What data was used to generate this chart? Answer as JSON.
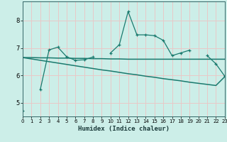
{
  "title": "",
  "xlabel": "Humidex (Indice chaleur)",
  "bg_color": "#cceee8",
  "grid_color": "#e8c8c8",
  "line_color": "#1a7a6e",
  "x_values": [
    0,
    1,
    2,
    3,
    4,
    5,
    6,
    7,
    8,
    9,
    10,
    11,
    12,
    13,
    14,
    15,
    16,
    17,
    18,
    19,
    20,
    21,
    22,
    23
  ],
  "y_jagged": [
    4.72,
    null,
    5.48,
    6.93,
    7.03,
    6.68,
    6.55,
    6.57,
    6.67,
    null,
    6.82,
    7.12,
    8.33,
    7.48,
    7.48,
    7.45,
    7.28,
    6.72,
    6.82,
    6.92,
    null,
    6.72,
    6.42,
    5.97
  ],
  "y_trend1": [
    6.65,
    6.65,
    6.64,
    6.64,
    6.63,
    6.63,
    6.62,
    6.62,
    6.61,
    6.61,
    6.6,
    6.6,
    6.59,
    6.59,
    6.59,
    6.59,
    6.59,
    6.59,
    6.59,
    6.59,
    6.59,
    6.59,
    6.59,
    6.59
  ],
  "y_trend2": [
    6.65,
    6.6,
    6.55,
    6.5,
    6.45,
    6.4,
    6.35,
    6.3,
    6.25,
    6.2,
    6.16,
    6.11,
    6.06,
    6.02,
    5.97,
    5.93,
    5.88,
    5.84,
    5.8,
    5.75,
    5.71,
    5.67,
    5.63,
    5.95
  ],
  "xlim": [
    0,
    23
  ],
  "ylim": [
    4.5,
    8.7
  ],
  "yticks": [
    5,
    6,
    7,
    8
  ],
  "xticks": [
    0,
    1,
    2,
    3,
    4,
    5,
    6,
    7,
    8,
    9,
    10,
    11,
    12,
    13,
    14,
    15,
    16,
    17,
    18,
    19,
    20,
    21,
    22,
    23
  ]
}
